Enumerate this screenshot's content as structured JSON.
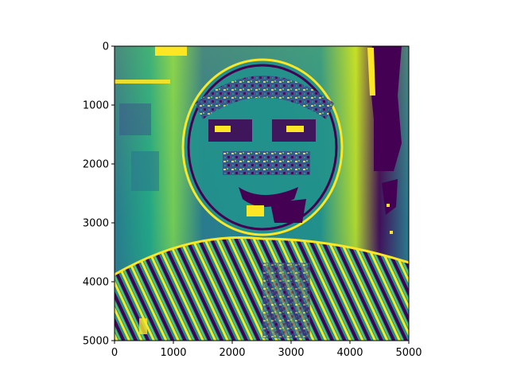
{
  "chart_data": {
    "type": "heatmap",
    "title": "",
    "xlabel": "",
    "ylabel": "",
    "xlim": [
      0,
      5000
    ],
    "ylim": [
      5000,
      0
    ],
    "y_axis_inverted": true,
    "grid": false,
    "colormap": "viridis",
    "colormap_stops": [
      "#440154",
      "#3b528b",
      "#21918c",
      "#5ec962",
      "#fde725"
    ],
    "x_ticks": [
      0,
      1000,
      2000,
      3000,
      4000,
      5000
    ],
    "x_tick_labels": [
      "0",
      "1000",
      "2000",
      "3000",
      "4000",
      "5000"
    ],
    "y_ticks": [
      0,
      1000,
      2000,
      3000,
      4000,
      5000
    ],
    "y_tick_labels": [
      "0",
      "1000",
      "2000",
      "3000",
      "4000",
      "5000"
    ],
    "image_content": "edge-filtered portrait rendered as a heatmap",
    "value_scale": "unlabeled (no colorbar shown)"
  },
  "colors": {
    "axis": "#000000",
    "background": "#ffffff"
  }
}
